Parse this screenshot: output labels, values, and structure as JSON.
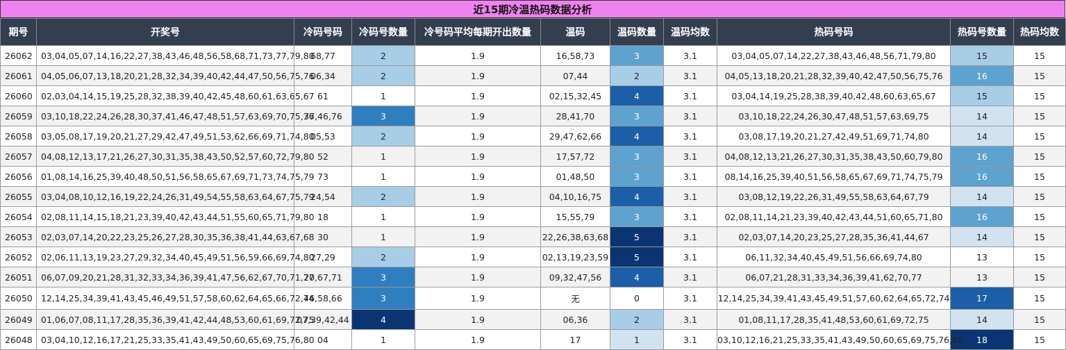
{
  "title": "近15期冷温热码数据分析",
  "headers": [
    "期号",
    "开奖号",
    "冷码号码",
    "冷码号数量",
    "冷号码平均每期开出数量",
    "温码",
    "温码数量",
    "温码均数",
    "热码号码",
    "热码号数量",
    "热码均数"
  ],
  "rows": [
    {
      "period": "26062",
      "draw": "03,04,05,07,14,16,22,27,38,43,46,48,56,58,68,71,73,77,79,80",
      "cold": "68,77",
      "cold_count": "2",
      "cold_avg": "1.9",
      "warm": "16,58,73",
      "warm_count": "3",
      "warm_avg": "3.1",
      "hot": "03,04,05,07,14,22,27,38,43,46,48,56,71,79,80",
      "hot_count": "15",
      "hot_avg": "15"
    },
    {
      "period": "26061",
      "draw": "04,05,06,07,13,18,20,21,28,32,34,39,40,42,44,47,50,56,75,76",
      "cold": "06,34",
      "cold_count": "2",
      "cold_avg": "1.9",
      "warm": "07,44",
      "warm_count": "2",
      "warm_avg": "3.1",
      "hot": "04,05,13,18,20,21,28,32,39,40,42,47,50,56,75,76",
      "hot_count": "16",
      "hot_avg": "15"
    },
    {
      "period": "26060",
      "draw": "02,03,04,14,15,19,25,28,32,38,39,40,42,45,48,60,61,63,65,67",
      "cold": "61",
      "cold_count": "1",
      "cold_avg": "1.9",
      "warm": "02,15,32,45",
      "warm_count": "4",
      "warm_avg": "3.1",
      "hot": "03,04,14,19,25,28,38,39,40,42,48,60,63,65,67",
      "hot_count": "15",
      "hot_avg": "15"
    },
    {
      "period": "26059",
      "draw": "03,10,18,22,24,26,28,30,37,41,46,47,48,51,57,63,69,70,75,76",
      "cold": "37,46,76",
      "cold_count": "3",
      "cold_avg": "1.9",
      "warm": "28,41,70",
      "warm_count": "3",
      "warm_avg": "3.1",
      "hot": "03,10,18,22,24,26,30,47,48,51,57,63,69,75",
      "hot_count": "14",
      "hot_avg": "15"
    },
    {
      "period": "26058",
      "draw": "03,05,08,17,19,20,21,27,29,42,47,49,51,53,62,66,69,71,74,80",
      "cold": "05,53",
      "cold_count": "2",
      "cold_avg": "1.9",
      "warm": "29,47,62,66",
      "warm_count": "4",
      "warm_avg": "3.1",
      "hot": "03,08,17,19,20,21,27,42,49,51,69,71,74,80",
      "hot_count": "14",
      "hot_avg": "15"
    },
    {
      "period": "26057",
      "draw": "04,08,12,13,17,21,26,27,30,31,35,38,43,50,52,57,60,72,79,80",
      "cold": "52",
      "cold_count": "1",
      "cold_avg": "1.9",
      "warm": "17,57,72",
      "warm_count": "3",
      "warm_avg": "3.1",
      "hot": "04,08,12,13,21,26,27,30,31,35,38,43,50,60,79,80",
      "hot_count": "16",
      "hot_avg": "15"
    },
    {
      "period": "26056",
      "draw": "01,08,14,16,25,39,40,48,50,51,56,58,65,67,69,71,73,74,75,79",
      "cold": "73",
      "cold_count": "1",
      "cold_avg": "1.9",
      "warm": "01,48,50",
      "warm_count": "3",
      "warm_avg": "3.1",
      "hot": "08,14,16,25,39,40,51,56,58,65,67,69,71,74,75,79",
      "hot_count": "16",
      "hot_avg": "15"
    },
    {
      "period": "26055",
      "draw": "03,04,08,10,12,16,19,22,24,26,31,49,54,55,58,63,64,67,75,79",
      "cold": "24,54",
      "cold_count": "2",
      "cold_avg": "1.9",
      "warm": "04,10,16,75",
      "warm_count": "4",
      "warm_avg": "3.1",
      "hot": "03,08,12,19,22,26,31,49,55,58,63,64,67,79",
      "hot_count": "14",
      "hot_avg": "15"
    },
    {
      "period": "26054",
      "draw": "02,08,11,14,15,18,21,23,39,40,42,43,44,51,55,60,65,71,79,80",
      "cold": "18",
      "cold_count": "1",
      "cold_avg": "1.9",
      "warm": "15,55,79",
      "warm_count": "3",
      "warm_avg": "3.1",
      "hot": "02,08,11,14,21,23,39,40,42,43,44,51,60,65,71,80",
      "hot_count": "16",
      "hot_avg": "15"
    },
    {
      "period": "26053",
      "draw": "02,03,07,14,20,22,23,25,26,27,28,30,35,36,38,41,44,63,67,68",
      "cold": "30",
      "cold_count": "1",
      "cold_avg": "1.9",
      "warm": "22,26,38,63,68",
      "warm_count": "5",
      "warm_avg": "3.1",
      "hot": "02,03,07,14,20,23,25,27,28,35,36,41,44,67",
      "hot_count": "14",
      "hot_avg": "15"
    },
    {
      "period": "26052",
      "draw": "02,06,11,13,19,23,27,29,32,34,40,45,49,51,56,59,66,69,74,80",
      "cold": "27,29",
      "cold_count": "2",
      "cold_avg": "1.9",
      "warm": "02,13,19,23,59",
      "warm_count": "5",
      "warm_avg": "3.1",
      "hot": "06,11,32,34,40,45,49,51,56,66,69,74,80",
      "hot_count": "13",
      "hot_avg": "15"
    },
    {
      "period": "26051",
      "draw": "06,07,09,20,21,28,31,32,33,34,36,39,41,47,56,62,67,70,71,77",
      "cold": "20,67,71",
      "cold_count": "3",
      "cold_avg": "1.9",
      "warm": "09,32,47,56",
      "warm_count": "4",
      "warm_avg": "3.1",
      "hot": "06,07,21,28,31,33,34,36,39,41,62,70,77",
      "hot_count": "13",
      "hot_avg": "15"
    },
    {
      "period": "26050",
      "draw": "12,14,25,34,39,41,43,45,46,49,51,57,58,60,62,64,65,66,72,74",
      "cold": "46,58,66",
      "cold_count": "3",
      "cold_avg": "1.9",
      "warm": "无",
      "warm_count": "0",
      "warm_avg": "3.1",
      "hot": "12,14,25,34,39,41,43,45,49,51,57,60,62,64,65,72,74",
      "hot_count": "17",
      "hot_avg": "15"
    },
    {
      "period": "26049",
      "draw": "01,06,07,08,11,17,28,35,36,39,41,42,44,48,53,60,61,69,72,75",
      "cold": "07,39,42,44",
      "cold_count": "4",
      "cold_avg": "1.9",
      "warm": "06,36",
      "warm_count": "2",
      "warm_avg": "3.1",
      "hot": "01,08,11,17,28,35,41,48,53,60,61,69,72,75",
      "hot_count": "14",
      "hot_avg": "15"
    },
    {
      "period": "26048",
      "draw": "03,04,10,12,16,17,21,25,33,35,41,43,49,50,60,65,69,75,76,80",
      "cold": "04",
      "cold_count": "1",
      "cold_avg": "1.9",
      "warm": "17",
      "warm_count": "1",
      "warm_avg": "3.1",
      "hot": "03,10,12,16,21,25,33,35,41,43,49,50,60,65,69,75,76,80",
      "hot_count": "18",
      "hot_avg": "15"
    }
  ]
}
